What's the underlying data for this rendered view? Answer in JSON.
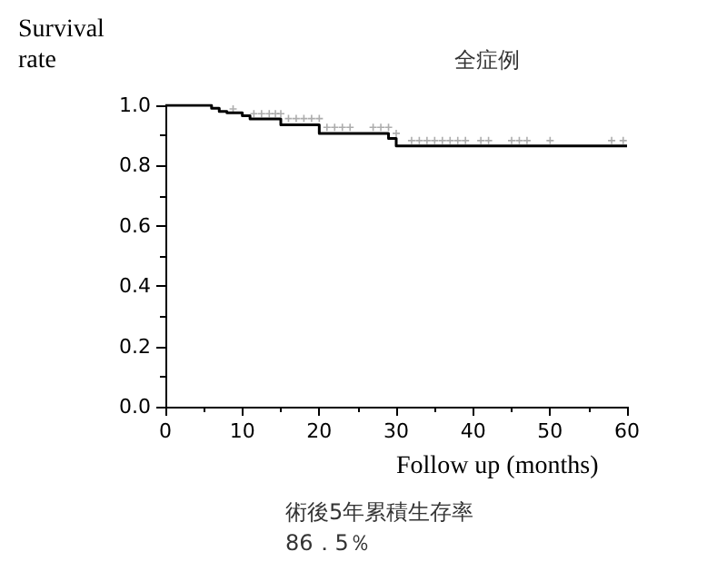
{
  "chart_data": {
    "type": "step",
    "title": "全症例",
    "ylabel": "Survival rate",
    "xlabel": "Follow up (months)",
    "annotations": [
      "術後5年累積生存率",
      "86．5％"
    ],
    "xlim": [
      0,
      60
    ],
    "xticks": [
      0,
      10,
      20,
      30,
      40,
      50,
      60
    ],
    "ylim": [
      0,
      1
    ],
    "yticks": [
      {
        "value": 0,
        "label": "0.0"
      },
      {
        "value": 0.2,
        "label": "0.2"
      },
      {
        "value": 0.4,
        "label": "0.4"
      },
      {
        "value": 0.6,
        "label": "0.6"
      },
      {
        "value": 0.8,
        "label": "0.8"
      },
      {
        "value": 1,
        "label": "1.0"
      }
    ],
    "grid": false,
    "series": [
      {
        "color": "#000000",
        "line_style": "solid",
        "marker": "none",
        "x": [
          0,
          6,
          7,
          8,
          10,
          11,
          15,
          20,
          29,
          30,
          60
        ],
        "values": [
          1,
          0.99,
          0.98,
          0.975,
          0.965,
          0.955,
          0.935,
          0.907,
          0.89,
          0.865,
          0.865
        ]
      },
      {
        "type": "scatter",
        "color": "#999999",
        "marker": "cross",
        "x": [
          8.8,
          11.5,
          12.5,
          13.5,
          14.3,
          15,
          16,
          17,
          18,
          19,
          20,
          21,
          22,
          23,
          24,
          27,
          28,
          29,
          30,
          32,
          33,
          34,
          35,
          36,
          37,
          38,
          39,
          41,
          42,
          45,
          46,
          47,
          50,
          58,
          59.5
        ],
        "values": [
          0.988,
          0.972,
          0.972,
          0.972,
          0.972,
          0.972,
          0.956,
          0.956,
          0.956,
          0.956,
          0.956,
          0.927,
          0.927,
          0.927,
          0.927,
          0.927,
          0.927,
          0.927,
          0.907,
          0.883,
          0.883,
          0.883,
          0.883,
          0.883,
          0.883,
          0.883,
          0.883,
          0.883,
          0.883,
          0.883,
          0.883,
          0.883,
          0.883,
          0.883,
          0.883
        ]
      }
    ]
  }
}
